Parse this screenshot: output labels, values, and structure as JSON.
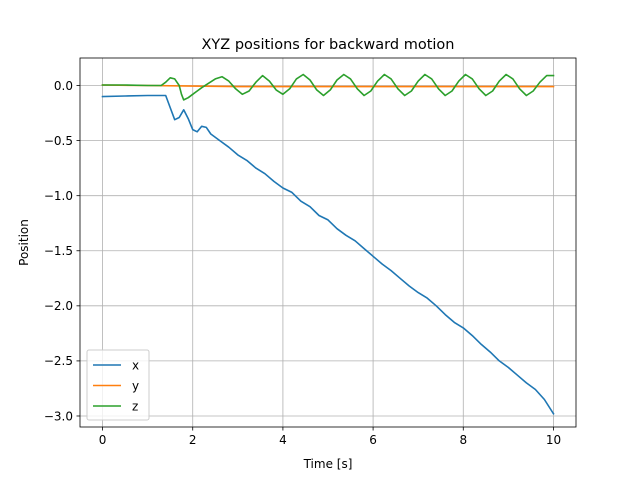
{
  "chart_data": {
    "type": "line",
    "title": "XYZ positions for backward motion",
    "xlabel": "Time [s]",
    "ylabel": "Position",
    "xlim": [
      -0.5,
      10.5
    ],
    "ylim": [
      -3.1,
      0.25
    ],
    "grid": true,
    "legend_position": "lower-left",
    "xticks": [
      0,
      2,
      4,
      6,
      8,
      10
    ],
    "xtick_labels": [
      "0",
      "2",
      "4",
      "6",
      "8",
      "10"
    ],
    "yticks": [
      0.0,
      -0.5,
      -1.0,
      -1.5,
      -2.0,
      -2.5,
      -3.0
    ],
    "ytick_labels": [
      "0.0",
      "−0.5",
      "−1.0",
      "−1.5",
      "−2.0",
      "−2.5",
      "−3.0"
    ],
    "series": [
      {
        "name": "x",
        "color": "#1f77b4",
        "x": [
          0,
          0.5,
          1.0,
          1.4,
          1.5,
          1.6,
          1.7,
          1.8,
          1.9,
          2.0,
          2.1,
          2.2,
          2.3,
          2.4,
          2.6,
          2.8,
          3.0,
          3.2,
          3.4,
          3.6,
          3.8,
          4.0,
          4.2,
          4.4,
          4.6,
          4.8,
          5.0,
          5.2,
          5.4,
          5.6,
          5.8,
          6.0,
          6.2,
          6.4,
          6.6,
          6.8,
          7.0,
          7.2,
          7.4,
          7.6,
          7.8,
          8.0,
          8.2,
          8.4,
          8.6,
          8.8,
          9.0,
          9.2,
          9.4,
          9.6,
          9.8,
          10.0
        ],
        "y": [
          -0.1,
          -0.095,
          -0.09,
          -0.09,
          -0.2,
          -0.31,
          -0.29,
          -0.22,
          -0.3,
          -0.4,
          -0.42,
          -0.37,
          -0.38,
          -0.44,
          -0.5,
          -0.56,
          -0.63,
          -0.68,
          -0.75,
          -0.8,
          -0.87,
          -0.93,
          -0.97,
          -1.05,
          -1.1,
          -1.18,
          -1.22,
          -1.3,
          -1.36,
          -1.41,
          -1.48,
          -1.55,
          -1.62,
          -1.68,
          -1.75,
          -1.82,
          -1.88,
          -1.93,
          -2.0,
          -2.08,
          -2.15,
          -2.2,
          -2.27,
          -2.35,
          -2.42,
          -2.5,
          -2.56,
          -2.63,
          -2.7,
          -2.76,
          -2.85,
          -2.98
        ]
      },
      {
        "name": "y",
        "color": "#ff7f0e",
        "x": [
          0,
          1,
          2,
          3,
          4,
          5,
          6,
          7,
          8,
          9,
          10
        ],
        "y": [
          0.005,
          0.0,
          -0.005,
          -0.01,
          -0.01,
          -0.01,
          -0.01,
          -0.01,
          -0.01,
          -0.01,
          -0.01
        ]
      },
      {
        "name": "z",
        "color": "#2ca02c",
        "x": [
          0,
          0.5,
          1.0,
          1.3,
          1.4,
          1.5,
          1.6,
          1.7,
          1.75,
          1.8,
          1.9,
          2.0,
          2.1,
          2.2,
          2.35,
          2.5,
          2.65,
          2.8,
          2.95,
          3.1,
          3.25,
          3.4,
          3.55,
          3.7,
          3.85,
          4.0,
          4.15,
          4.3,
          4.45,
          4.6,
          4.75,
          4.9,
          5.05,
          5.2,
          5.35,
          5.5,
          5.65,
          5.8,
          5.95,
          6.1,
          6.25,
          6.4,
          6.55,
          6.7,
          6.85,
          7.0,
          7.15,
          7.3,
          7.45,
          7.6,
          7.75,
          7.9,
          8.05,
          8.2,
          8.35,
          8.5,
          8.65,
          8.8,
          8.95,
          9.1,
          9.25,
          9.4,
          9.55,
          9.7,
          9.85,
          10.0
        ],
        "y": [
          0.005,
          0.005,
          0.0,
          0.0,
          0.03,
          0.07,
          0.06,
          0.0,
          -0.08,
          -0.13,
          -0.11,
          -0.08,
          -0.05,
          -0.02,
          0.02,
          0.06,
          0.08,
          0.04,
          -0.03,
          -0.08,
          -0.05,
          0.03,
          0.09,
          0.04,
          -0.04,
          -0.08,
          -0.03,
          0.06,
          0.1,
          0.05,
          -0.04,
          -0.09,
          -0.04,
          0.05,
          0.1,
          0.06,
          -0.03,
          -0.09,
          -0.05,
          0.04,
          0.1,
          0.06,
          -0.03,
          -0.09,
          -0.05,
          0.04,
          0.1,
          0.06,
          -0.03,
          -0.09,
          -0.05,
          0.04,
          0.1,
          0.06,
          -0.03,
          -0.09,
          -0.05,
          0.04,
          0.1,
          0.06,
          -0.03,
          -0.09,
          -0.05,
          0.03,
          0.09,
          0.09
        ]
      }
    ]
  }
}
